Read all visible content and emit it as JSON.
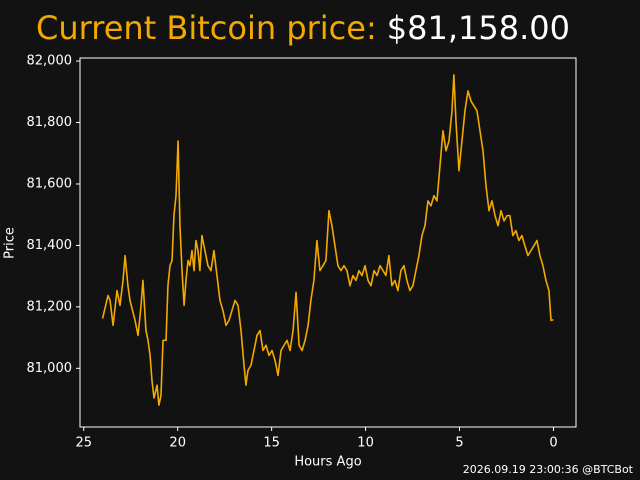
{
  "chart_data": {
    "type": "line",
    "title": "Current Bitcoin price:",
    "title_value": "$81,158.00",
    "xlabel": "Hours Ago",
    "ylabel": "Price",
    "footer": "2026.09.19 23:00:36 @BTCBot",
    "color": "#f2a900",
    "title_color": "#f2a900",
    "xlim": [
      25.2,
      -1.2
    ],
    "ylim": [
      80809,
      82010
    ],
    "xticks": [
      25,
      20,
      15,
      10,
      5,
      0
    ],
    "yticks": [
      {
        "value": 81000,
        "label": "81,000"
      },
      {
        "value": 81200,
        "label": "81,200"
      },
      {
        "value": 81400,
        "label": "81,400"
      },
      {
        "value": 81600,
        "label": "81,600"
      },
      {
        "value": 81800,
        "label": "81,800"
      },
      {
        "value": 82000,
        "label": "82,000"
      }
    ],
    "x": [
      24.0,
      23.71,
      23.6,
      23.44,
      23.23,
      23.07,
      22.91,
      22.8,
      22.65,
      22.54,
      22.27,
      22.11,
      21.95,
      21.85,
      21.69,
      21.58,
      21.47,
      21.37,
      21.26,
      21.1,
      21.0,
      20.89,
      20.78,
      20.62,
      20.52,
      20.41,
      20.3,
      20.2,
      20.09,
      19.98,
      19.88,
      19.77,
      19.66,
      19.56,
      19.45,
      19.35,
      19.24,
      19.13,
      19.03,
      18.92,
      18.82,
      18.71,
      18.55,
      18.39,
      18.23,
      18.07,
      17.91,
      17.75,
      17.59,
      17.43,
      17.27,
      17.11,
      16.95,
      16.79,
      16.63,
      16.47,
      16.37,
      16.26,
      16.1,
      15.94,
      15.78,
      15.62,
      15.46,
      15.3,
      15.14,
      14.98,
      14.82,
      14.66,
      14.5,
      14.34,
      14.18,
      14.02,
      13.86,
      13.7,
      13.54,
      13.38,
      13.22,
      13.06,
      12.91,
      12.75,
      12.59,
      12.43,
      12.27,
      12.11,
      11.95,
      11.79,
      11.63,
      11.47,
      11.31,
      11.15,
      10.99,
      10.83,
      10.67,
      10.51,
      10.35,
      10.19,
      10.03,
      9.87,
      9.71,
      9.55,
      9.39,
      9.23,
      9.07,
      8.92,
      8.76,
      8.6,
      8.44,
      8.28,
      8.12,
      7.96,
      7.8,
      7.64,
      7.48,
      7.32,
      7.16,
      7.0,
      6.84,
      6.68,
      6.52,
      6.36,
      6.2,
      6.04,
      5.88,
      5.72,
      5.56,
      5.4,
      5.3,
      5.19,
      5.03,
      4.87,
      4.71,
      4.55,
      4.39,
      4.23,
      4.07,
      3.91,
      3.75,
      3.59,
      3.43,
      3.27,
      3.11,
      2.95,
      2.79,
      2.63,
      2.47,
      2.32,
      2.16,
      2.0,
      1.84,
      1.68,
      1.52,
      1.36,
      1.2,
      1.04,
      0.88,
      0.72,
      0.56,
      0.4,
      0.24,
      0.13,
      0
    ],
    "values": [
      81162,
      81237,
      81221,
      81140,
      81253,
      81205,
      81286,
      81367,
      81269,
      81221,
      81156,
      81107,
      81205,
      81286,
      81123,
      81091,
      81042,
      80961,
      80903,
      80945,
      80880,
      80912,
      81091,
      81091,
      81269,
      81334,
      81351,
      81497,
      81562,
      81740,
      81464,
      81318,
      81205,
      81286,
      81351,
      81334,
      81383,
      81318,
      81416,
      81383,
      81318,
      81432,
      81383,
      81334,
      81318,
      81383,
      81302,
      81221,
      81188,
      81140,
      81156,
      81188,
      81221,
      81205,
      81123,
      81010,
      80945,
      80993,
      81010,
      81058,
      81107,
      81123,
      81058,
      81075,
      81042,
      81058,
      81026,
      80977,
      81058,
      81075,
      81091,
      81058,
      81123,
      81247,
      81075,
      81058,
      81091,
      81140,
      81221,
      81286,
      81416,
      81318,
      81334,
      81351,
      81513,
      81464,
      81399,
      81334,
      81318,
      81334,
      81318,
      81269,
      81302,
      81286,
      81318,
      81302,
      81334,
      81286,
      81269,
      81318,
      81302,
      81334,
      81318,
      81302,
      81367,
      81269,
      81286,
      81253,
      81318,
      81334,
      81286,
      81253,
      81269,
      81318,
      81367,
      81432,
      81464,
      81545,
      81529,
      81562,
      81545,
      81659,
      81773,
      81708,
      81740,
      81838,
      81955,
      81805,
      81643,
      81740,
      81838,
      81903,
      81870,
      81854,
      81838,
      81773,
      81708,
      81594,
      81513,
      81545,
      81497,
      81464,
      81513,
      81480,
      81497,
      81497,
      81432,
      81448,
      81416,
      81432,
      81399,
      81367,
      81383,
      81399,
      81416,
      81367,
      81334,
      81286,
      81253,
      81156,
      81158
    ]
  }
}
